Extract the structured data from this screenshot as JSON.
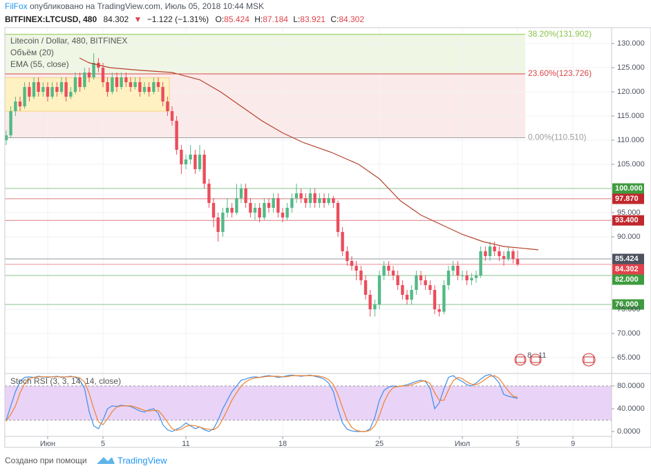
{
  "header": {
    "author": "FilFox",
    "published": " опубликовано на TradingView.com, Июль 05, 2018 10:44 MSK",
    "symbol": "BITFINEX:LTCUSD, 480",
    "last": "84.302",
    "arrow": "▼",
    "change": "−1.122 (−1.31%)",
    "ohlc": [
      {
        "label": "O:",
        "value": "85.424"
      },
      {
        "label": "H:",
        "value": "87.184"
      },
      {
        "label": "L:",
        "value": "83.921"
      },
      {
        "label": "C:",
        "value": "84.302"
      }
    ]
  },
  "chart_data": [
    {
      "type": "candlestick",
      "title": "Litecoin / Dollar, 480, BITFINEX",
      "indicators": [
        "Объём (20)",
        "EMA (55, close)"
      ],
      "up_color": "#53b987",
      "down_color": "#eb4d5c",
      "grid": true,
      "xlim": [
        -2.1,
        41.8
      ],
      "ylim": [
        61.71,
        133.29
      ],
      "xticks": [
        {
          "value": 1,
          "label": "Июн"
        },
        5,
        11,
        18,
        25,
        {
          "value": 31,
          "label": "Июл"
        },
        {
          "value": 35,
          "label": "5"
        },
        {
          "value": 39,
          "label": "9"
        }
      ],
      "yticks": [
        {
          "value": 130,
          "label": "130.000"
        },
        {
          "value": 125,
          "label": "125.000"
        },
        {
          "value": 120,
          "label": "120.000"
        },
        {
          "value": 115,
          "label": "115.000"
        },
        {
          "value": 110,
          "label": "110.000"
        },
        {
          "value": 105,
          "label": "105.000"
        },
        {
          "value": 95,
          "label": "95.000"
        },
        {
          "value": 90,
          "label": "90.000"
        },
        {
          "value": 75,
          "label": "75.000"
        },
        {
          "value": 70,
          "label": "70.000"
        },
        {
          "value": 65,
          "label": "65.000"
        }
      ],
      "x": [
        -2,
        -1.67,
        -1.33,
        -1,
        -0.67,
        -0.33,
        0,
        0.33,
        0.67,
        1,
        1.33,
        1.67,
        2,
        2.33,
        2.67,
        3,
        3.33,
        3.67,
        4,
        4.33,
        4.67,
        5,
        5.33,
        5.67,
        6,
        6.33,
        6.67,
        7,
        7.33,
        7.67,
        8,
        8.33,
        8.67,
        9,
        9.33,
        9.67,
        10,
        10.33,
        10.67,
        11,
        11.33,
        11.67,
        12,
        12.33,
        12.67,
        13,
        13.33,
        13.67,
        14,
        14.33,
        14.67,
        15,
        15.33,
        15.67,
        16,
        16.33,
        16.67,
        17,
        17.33,
        17.67,
        18,
        18.33,
        18.67,
        19,
        19.33,
        19.67,
        20,
        20.33,
        20.67,
        21,
        21.33,
        21.67,
        22,
        22.33,
        22.67,
        23,
        23.33,
        23.67,
        24,
        24.33,
        24.67,
        25,
        25.33,
        25.67,
        26,
        26.33,
        26.67,
        27,
        27.33,
        27.67,
        28,
        28.33,
        28.67,
        29,
        29.33,
        29.67,
        30,
        30.33,
        30.67,
        31,
        31.33,
        31.67,
        32,
        32.33,
        32.67,
        33,
        33.33,
        33.67,
        34,
        34.33,
        34.67,
        35
      ],
      "open": [
        110,
        111,
        116,
        118,
        117,
        121,
        119,
        122,
        120,
        121,
        119,
        121,
        120,
        122,
        119,
        120,
        123,
        121,
        124,
        123,
        126,
        125,
        122,
        120,
        123,
        121,
        123,
        122,
        121,
        122,
        120,
        121,
        120,
        122,
        121,
        118,
        116,
        114,
        108,
        105,
        106,
        107,
        104,
        107,
        101,
        97,
        94,
        91,
        95,
        96,
        95,
        98,
        100,
        97,
        95,
        96,
        94,
        97,
        96,
        98,
        95,
        94,
        96,
        98,
        99,
        98,
        97,
        99,
        97,
        98,
        97,
        98,
        97,
        91,
        87,
        85,
        84,
        83,
        81,
        78,
        75,
        76,
        82,
        84,
        83,
        82,
        80,
        78,
        77,
        79,
        82,
        81,
        80,
        79,
        75,
        74.5,
        80,
        83,
        84,
        82,
        82,
        81,
        81.5,
        82,
        87,
        86,
        88,
        87,
        86,
        85.5,
        87,
        85.424
      ],
      "high": [
        112,
        117,
        119,
        119,
        122,
        122,
        123,
        123,
        122,
        122,
        122,
        122,
        123,
        123,
        121,
        124,
        124,
        125,
        125,
        128,
        127,
        126,
        123,
        124,
        124,
        124,
        124,
        123,
        123,
        123,
        122,
        122,
        123,
        123,
        122,
        119,
        117,
        115,
        109,
        107,
        109,
        108,
        109,
        108,
        102,
        98,
        95,
        96,
        98,
        97,
        101,
        101,
        101,
        98,
        97,
        97,
        98,
        98,
        99,
        99,
        96,
        97,
        99,
        101,
        100,
        99,
        100,
        100,
        99,
        99,
        99,
        98.5,
        97.5,
        92,
        88,
        86,
        85,
        84,
        82,
        79,
        77,
        83,
        85,
        85,
        84,
        83,
        81,
        79,
        80,
        83,
        83,
        82,
        81,
        80,
        76,
        81,
        84,
        85,
        85,
        83,
        83,
        82.5,
        83,
        88,
        88,
        89,
        89,
        88,
        87,
        88,
        87.5,
        87.184
      ],
      "low": [
        109,
        110.5,
        115,
        116,
        116.5,
        118,
        118.5,
        119,
        119,
        118,
        118.5,
        119,
        119.5,
        118,
        118.5,
        119.5,
        120,
        120.5,
        122,
        122.5,
        124,
        121,
        119,
        119.5,
        120,
        120.5,
        121,
        120,
        120.5,
        119,
        119.5,
        119,
        119.5,
        120,
        117,
        115,
        113,
        107,
        103,
        104,
        105,
        103,
        103.5,
        100,
        96,
        92,
        89,
        90,
        94,
        94,
        94.5,
        97,
        96,
        94,
        93.5,
        93,
        93.5,
        95,
        95,
        94,
        93,
        93.5,
        95,
        97,
        97,
        96,
        96,
        96,
        96,
        96,
        96.5,
        96,
        90,
        86,
        84,
        83,
        81,
        80,
        77,
        73.5,
        73.5,
        75,
        81,
        82,
        81,
        79,
        77,
        76,
        76,
        78,
        80,
        79,
        78,
        74,
        73.5,
        74,
        79,
        82,
        81,
        81,
        80,
        80,
        80.5,
        81.5,
        85,
        85,
        86,
        85,
        84,
        85,
        84.5,
        83.921
      ],
      "close": [
        111,
        116,
        118,
        117,
        121,
        119,
        122,
        120,
        121,
        119,
        121,
        120,
        122,
        119,
        120,
        123,
        121,
        124,
        123,
        126,
        125,
        122,
        120,
        123,
        121,
        123,
        122,
        121,
        122,
        120,
        121,
        120,
        122,
        121,
        118,
        116,
        114,
        108,
        105,
        106,
        107,
        104,
        107,
        101,
        97,
        94,
        91,
        95,
        96,
        95,
        98,
        100,
        97,
        95,
        96,
        94,
        97,
        96,
        98,
        95,
        94,
        96,
        98,
        99,
        98,
        97,
        99,
        97,
        98,
        97,
        98,
        97,
        91,
        87,
        85,
        84,
        83,
        81,
        78,
        75,
        76,
        82,
        84,
        83,
        82,
        80,
        78,
        77,
        79,
        82,
        81,
        80,
        79,
        75,
        74.5,
        80,
        83,
        84,
        82,
        82,
        81,
        81.5,
        82,
        87,
        86,
        88,
        87,
        86,
        85.5,
        87,
        85.424,
        84.302
      ],
      "ema": {
        "color": "#b5402a",
        "x": [
          3.3,
          4,
          5.5,
          7.5,
          10,
          12,
          13.5,
          15,
          16.5,
          18,
          19.5,
          21.5,
          23.5,
          25,
          26.5,
          28,
          29.5,
          31,
          32.5,
          34,
          35.5,
          36.5
        ],
        "values": [
          127,
          126,
          125,
          124.5,
          124,
          122.5,
          120,
          117,
          114,
          111.5,
          109.5,
          107.5,
          105,
          102,
          97.5,
          94.5,
          92.5,
          90.5,
          89,
          88,
          87.6,
          87.3
        ]
      },
      "fib_levels": [
        {
          "value": 131.902,
          "label": "38.20%(131.902)",
          "color": "#8bc34a",
          "fill": "#eff6e4"
        },
        {
          "value": 123.726,
          "label": "23.60%(123.726)",
          "color": "#d84848",
          "fill": "#fbeaea"
        },
        {
          "value": 110.51,
          "label": "0.00%(110.510)",
          "color": "#9e9e9e"
        }
      ],
      "box": {
        "from": 116,
        "to": 122.9,
        "color": "#fff1c1",
        "border": "#f3d77e"
      },
      "levels": [
        {
          "value": 100,
          "label": "100.000",
          "color": "#3f9b3f"
        },
        {
          "value": 97.87,
          "label": "97.870",
          "color": "#c0282d"
        },
        {
          "value": 93.4,
          "label": "93.400",
          "color": "#c0282d"
        },
        {
          "value": 85.424,
          "label": "85.424",
          "color": "#4c525e"
        },
        {
          "value": 84.302,
          "label": "84.302",
          "color": "#e0434b"
        },
        {
          "value": 82,
          "label": "82.000",
          "color": "#3f9b3f"
        },
        {
          "value": 76,
          "label": "76.000",
          "color": "#3f9b3f"
        }
      ],
      "events": [
        "8",
        "11"
      ]
    },
    {
      "type": "line",
      "title": "Stoch RSI (3, 3, 14, 14, close)",
      "ylim": [
        -8.5,
        101.8
      ],
      "band": [
        20,
        80
      ],
      "band_color": "#e9d3f7",
      "yticks": [
        {
          "value": 80,
          "label": "80.0000"
        },
        {
          "value": 40,
          "label": "40.0000"
        },
        {
          "value": 0,
          "label": "0.0000"
        }
      ],
      "series": [
        {
          "color": "#3d8ee8",
          "values": [
            20,
            45,
            70,
            88,
            95,
            96,
            95,
            97,
            96,
            95,
            96,
            97,
            95,
            96,
            97,
            95,
            90,
            75,
            35,
            10,
            5,
            20,
            40,
            45,
            44,
            46,
            45,
            44,
            40,
            36,
            34,
            38,
            40,
            32,
            12,
            3,
            0,
            4,
            8,
            15,
            10,
            5,
            8,
            3,
            0,
            5,
            20,
            40,
            55,
            70,
            80,
            90,
            92,
            95,
            96,
            95,
            97,
            98,
            97,
            95,
            96,
            98,
            99,
            98,
            97,
            98,
            99,
            97,
            95,
            92,
            85,
            70,
            40,
            15,
            4,
            1,
            0,
            0,
            0,
            5,
            25,
            55,
            72,
            78,
            80,
            79,
            80,
            82,
            85,
            88,
            90,
            88,
            75,
            40,
            50,
            75,
            95,
            98,
            92,
            88,
            82,
            80,
            85,
            92,
            98,
            100,
            95,
            85,
            65,
            62,
            60,
            58
          ]
        },
        {
          "color": "#f0802a",
          "values": [
            18,
            30,
            45,
            68,
            84,
            93,
            95,
            96,
            96,
            96,
            96,
            96,
            96,
            96,
            96,
            96,
            94,
            87,
            67,
            40,
            17,
            12,
            22,
            35,
            43,
            45,
            45,
            45,
            43,
            40,
            37,
            36,
            37,
            37,
            28,
            16,
            5,
            2,
            4,
            9,
            11,
            10,
            8,
            5,
            4,
            3,
            8,
            22,
            38,
            55,
            68,
            80,
            87,
            92,
            94,
            95,
            96,
            97,
            97,
            97,
            96,
            96,
            98,
            98,
            98,
            98,
            98,
            98,
            97,
            95,
            91,
            82,
            65,
            42,
            20,
            7,
            2,
            0,
            0,
            2,
            10,
            28,
            51,
            68,
            77,
            79,
            80,
            80,
            82,
            85,
            88,
            89,
            84,
            68,
            55,
            55,
            73,
            89,
            95,
            93,
            87,
            83,
            82,
            86,
            92,
            97,
            98,
            93,
            82,
            71,
            62,
            60
          ]
        }
      ]
    }
  ],
  "footer": {
    "made_with": "Создано при помощи",
    "brand": "TradingView"
  }
}
